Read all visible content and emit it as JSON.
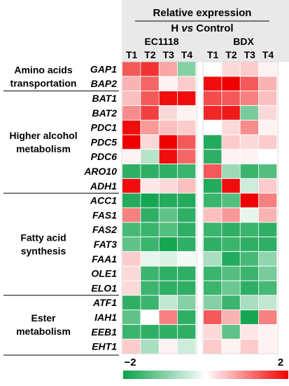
{
  "chart_data": {
    "type": "heatmap",
    "header": {
      "line1": "Relative expression",
      "line2_pre": "H ",
      "line2_vs": "vs",
      "line2_post": " Control"
    },
    "strains": [
      "EC1118",
      "BDX"
    ],
    "timepoints": [
      "T1",
      "T2",
      "T3",
      "T4"
    ],
    "genes": [
      "GAP1",
      "BAP2",
      "BAT1",
      "BAT2",
      "PDC1",
      "PDC5",
      "PDC6",
      "ARO10",
      "ADH1",
      "ACC1",
      "FAS1",
      "FAS2",
      "FAT3",
      "FAA1",
      "OLE1",
      "ELO1",
      "ATF1",
      "IAH1",
      "EEB1",
      "EHT1"
    ],
    "groups": [
      {
        "lines": [
          "Amino acids",
          "transportation"
        ],
        "start": 0,
        "end": 1
      },
      {
        "lines": [
          "Higher alcohol",
          "metabolism"
        ],
        "start": 2,
        "end": 8
      },
      {
        "lines": [
          "Fatty acid",
          "synthesis"
        ],
        "start": 9,
        "end": 15
      },
      {
        "lines": [
          "Ester",
          "metabolism"
        ],
        "start": 16,
        "end": 19
      }
    ],
    "values": {
      "EC1118": [
        [
          1.3,
          1.6,
          0.7,
          -1.0
        ],
        [
          0.6,
          1.2,
          0.1,
          0.4
        ],
        [
          0.5,
          1.3,
          1.9,
          1.9
        ],
        [
          0.9,
          1.5,
          0.3,
          0.1
        ],
        [
          1.9,
          0.8,
          0.5,
          0.4
        ],
        [
          2.0,
          0.3,
          2.0,
          1.3
        ],
        [
          0.1,
          -0.6,
          1.9,
          1.2
        ],
        [
          -1.7,
          -1.7,
          -1.7,
          -1.6
        ],
        [
          1.9,
          0.2,
          0.3,
          0.5
        ],
        [
          -1.8,
          -1.9,
          -1.8,
          -1.8
        ],
        [
          1.0,
          -1.7,
          -1.3,
          -1.7
        ],
        [
          -1.5,
          -1.6,
          -1.4,
          -1.7
        ],
        [
          -1.3,
          -1.6,
          -1.9,
          -1.7
        ],
        [
          0.4,
          -0.2,
          -0.3,
          -0.1
        ],
        [
          0.3,
          -1.6,
          -1.7,
          -1.7
        ],
        [
          0.3,
          -1.6,
          -1.7,
          -1.7
        ],
        [
          -1.7,
          -1.6,
          -0.5,
          -1.0
        ],
        [
          -1.3,
          0.0,
          1.0,
          -1.7
        ],
        [
          -1.6,
          -1.7,
          -1.7,
          -1.7
        ],
        [
          0.4,
          -0.7,
          0.1,
          -0.4
        ]
      ],
      "BDX": [
        [
          0.0,
          0.3,
          0.4,
          0.1
        ],
        [
          1.9,
          2.0,
          1.3,
          0.6
        ],
        [
          1.4,
          1.3,
          1.0,
          0.5
        ],
        [
          1.7,
          1.8,
          -1.1,
          0.3
        ],
        [
          0.0,
          0.3,
          0.9,
          0.1
        ],
        [
          -1.8,
          0.4,
          0.3,
          0.4
        ],
        [
          -1.7,
          0.1,
          0.1,
          0.0
        ],
        [
          1.3,
          -0.8,
          -1.6,
          -1.4
        ],
        [
          -1.8,
          1.9,
          -0.4,
          0.4
        ],
        [
          -1.6,
          -1.4,
          2.0,
          1.0
        ],
        [
          0.5,
          0.8,
          -0.2,
          0.6
        ],
        [
          -1.6,
          -1.7,
          -1.6,
          -1.7
        ],
        [
          -1.7,
          -1.6,
          -1.7,
          -1.7
        ],
        [
          -0.7,
          -1.8,
          -1.5,
          -0.9
        ],
        [
          -1.6,
          -1.4,
          -1.6,
          -1.1
        ],
        [
          -1.6,
          -1.2,
          -1.7,
          -1.5
        ],
        [
          -1.0,
          -1.6,
          -0.7,
          -0.5
        ],
        [
          1.3,
          0.6,
          -1.9,
          1.0
        ],
        [
          0.3,
          -1.3,
          0.2,
          0.1
        ],
        [
          0.4,
          0.1,
          0.4,
          0.1
        ]
      ]
    },
    "scale": {
      "min": -2,
      "max": 2,
      "min_label": "−2",
      "max_label": "2"
    },
    "colors": {
      "low": "#0aa14a",
      "mid": "#ffffff",
      "high": "#ee0000",
      "grid": "#ffffff",
      "frame": "#d0d0d0"
    }
  }
}
